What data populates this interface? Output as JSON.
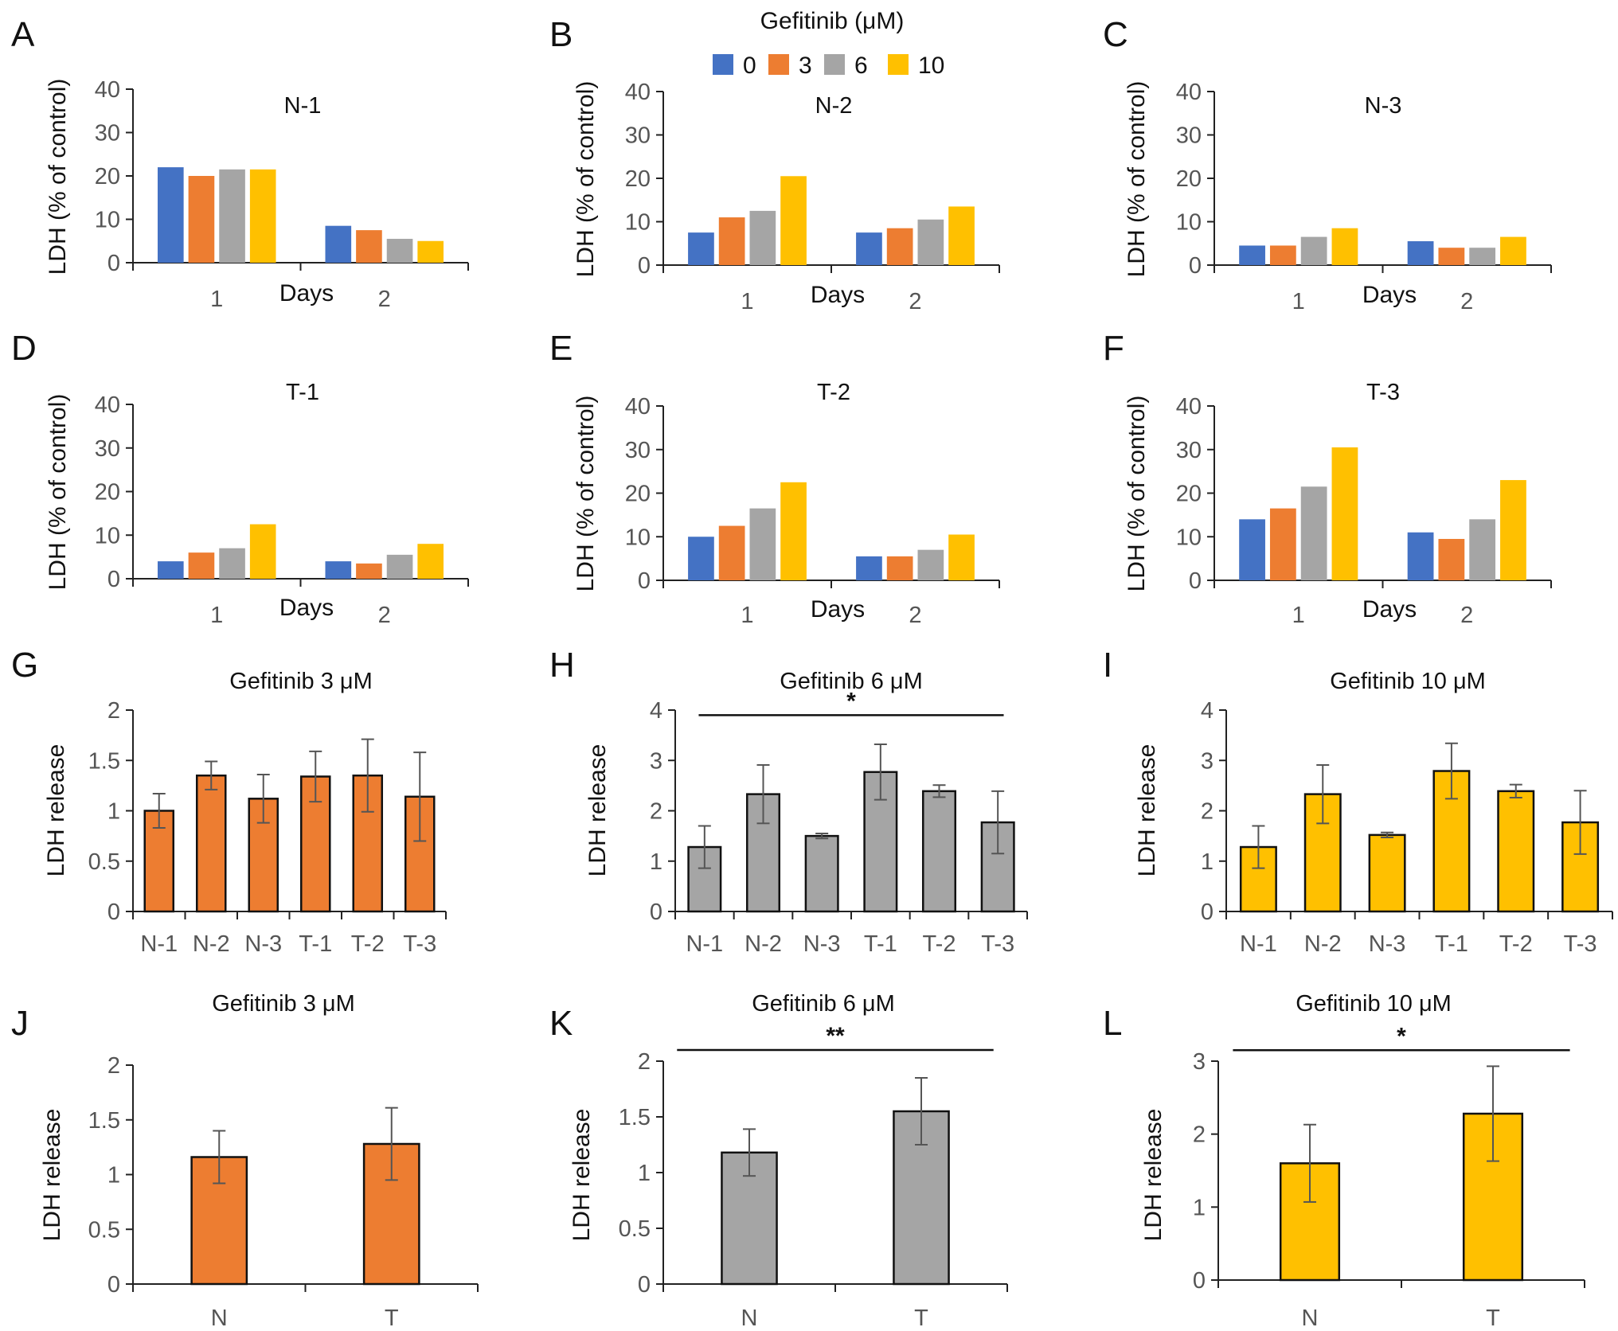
{
  "legend": {
    "title": "Gefitinib (μM)",
    "items": [
      {
        "label": "0",
        "color": "#4472C4"
      },
      {
        "label": "3",
        "color": "#ED7D31"
      },
      {
        "label": "6",
        "color": "#A5A5A5"
      },
      {
        "label": "10",
        "color": "#FFC000"
      }
    ]
  },
  "chart_data": [
    {
      "panel": "A",
      "type": "bar",
      "title": "N-1",
      "xlabel": "Days",
      "ylabel": "LDH (% of control)",
      "ylim": [
        0,
        40
      ],
      "yticks": [
        0,
        10,
        20,
        30,
        40
      ],
      "categories": [
        "1",
        "2"
      ],
      "series": [
        {
          "name": "0",
          "values": [
            22,
            8.5
          ]
        },
        {
          "name": "3",
          "values": [
            20,
            7.5
          ]
        },
        {
          "name": "6",
          "values": [
            21.5,
            5.5
          ]
        },
        {
          "name": "10",
          "values": [
            21.5,
            5
          ]
        }
      ]
    },
    {
      "panel": "B",
      "type": "bar",
      "title": "N-2",
      "xlabel": "Days",
      "ylabel": "LDH (% of control)",
      "ylim": [
        0,
        40
      ],
      "yticks": [
        0,
        10,
        20,
        30,
        40
      ],
      "categories": [
        "1",
        "2"
      ],
      "series": [
        {
          "name": "0",
          "values": [
            7.5,
            7.5
          ]
        },
        {
          "name": "3",
          "values": [
            11,
            8.5
          ]
        },
        {
          "name": "6",
          "values": [
            12.5,
            10.5
          ]
        },
        {
          "name": "10",
          "values": [
            20.5,
            13.5
          ]
        }
      ]
    },
    {
      "panel": "C",
      "type": "bar",
      "title": "N-3",
      "xlabel": "Days",
      "ylabel": "LDH (% of control)",
      "ylim": [
        0,
        40
      ],
      "yticks": [
        0,
        10,
        20,
        30,
        40
      ],
      "categories": [
        "1",
        "2"
      ],
      "series": [
        {
          "name": "0",
          "values": [
            4.5,
            5.5
          ]
        },
        {
          "name": "3",
          "values": [
            4.5,
            4
          ]
        },
        {
          "name": "6",
          "values": [
            6.5,
            4
          ]
        },
        {
          "name": "10",
          "values": [
            8.5,
            6.5
          ]
        }
      ]
    },
    {
      "panel": "D",
      "type": "bar",
      "title": "T-1",
      "xlabel": "Days",
      "ylabel": "LDH (% of control)",
      "ylim": [
        0,
        40
      ],
      "yticks": [
        0,
        10,
        20,
        30,
        40
      ],
      "categories": [
        "1",
        "2"
      ],
      "series": [
        {
          "name": "0",
          "values": [
            4,
            4
          ]
        },
        {
          "name": "3",
          "values": [
            6,
            3.5
          ]
        },
        {
          "name": "6",
          "values": [
            7,
            5.5
          ]
        },
        {
          "name": "10",
          "values": [
            12.5,
            8
          ]
        }
      ]
    },
    {
      "panel": "E",
      "type": "bar",
      "title": "T-2",
      "xlabel": "Days",
      "ylabel": "LDH (% of control)",
      "ylim": [
        0,
        40
      ],
      "yticks": [
        0,
        10,
        20,
        30,
        40
      ],
      "categories": [
        "1",
        "2"
      ],
      "series": [
        {
          "name": "0",
          "values": [
            10,
            5.5
          ]
        },
        {
          "name": "3",
          "values": [
            12.5,
            5.5
          ]
        },
        {
          "name": "6",
          "values": [
            16.5,
            7
          ]
        },
        {
          "name": "10",
          "values": [
            22.5,
            10.5
          ]
        }
      ]
    },
    {
      "panel": "F",
      "type": "bar",
      "title": "T-3",
      "xlabel": "Days",
      "ylabel": "LDH (% of control)",
      "ylim": [
        0,
        40
      ],
      "yticks": [
        0,
        10,
        20,
        30,
        40
      ],
      "categories": [
        "1",
        "2"
      ],
      "series": [
        {
          "name": "0",
          "values": [
            14,
            11
          ]
        },
        {
          "name": "3",
          "values": [
            16.5,
            9.5
          ]
        },
        {
          "name": "6",
          "values": [
            21.5,
            14
          ]
        },
        {
          "name": "10",
          "values": [
            30.5,
            23
          ]
        }
      ]
    },
    {
      "panel": "G",
      "type": "bar",
      "title": "Gefitinib 3 μM",
      "ylabel": "LDH release",
      "ylim": [
        0,
        2
      ],
      "yticks": [
        "0",
        "0.5",
        "1",
        "1.5",
        "2"
      ],
      "categories": [
        "N-1",
        "N-2",
        "N-3",
        "T-1",
        "T-2",
        "T-3"
      ],
      "color": "#ED7D31",
      "values": [
        1.0,
        1.35,
        1.12,
        1.34,
        1.35,
        1.14
      ],
      "errors": [
        0.17,
        0.14,
        0.24,
        0.25,
        0.36,
        0.44
      ]
    },
    {
      "panel": "H",
      "type": "bar",
      "title": "Gefitinib 6 μM",
      "ylabel": "LDH release",
      "ylim": [
        0,
        4
      ],
      "yticks": [
        "0",
        "1",
        "2",
        "3",
        "4"
      ],
      "categories": [
        "N-1",
        "N-2",
        "N-3",
        "T-1",
        "T-2",
        "T-3"
      ],
      "color": "#A5A5A5",
      "values": [
        1.28,
        2.33,
        1.5,
        2.77,
        2.39,
        1.77
      ],
      "errors": [
        0.42,
        0.58,
        0.05,
        0.55,
        0.12,
        0.62
      ],
      "significance": {
        "label": "*",
        "from": 0,
        "to": 5,
        "level": 3.9
      }
    },
    {
      "panel": "I",
      "type": "bar",
      "title": "Gefitinib 10 μM",
      "ylabel": "LDH release",
      "ylim": [
        0,
        4
      ],
      "yticks": [
        "0",
        "1",
        "2",
        "3",
        "4"
      ],
      "categories": [
        "N-1",
        "N-2",
        "N-3",
        "T-1",
        "T-2",
        "T-3"
      ],
      "color": "#FFC000",
      "values": [
        1.28,
        2.33,
        1.52,
        2.79,
        2.39,
        1.77
      ],
      "errors": [
        0.42,
        0.58,
        0.05,
        0.55,
        0.13,
        0.63
      ]
    },
    {
      "panel": "J",
      "type": "bar",
      "title": "Gefitinib 3 μM",
      "ylabel": "LDH release",
      "ylim": [
        0,
        2
      ],
      "yticks": [
        "0",
        "0.5",
        "1",
        "1.5",
        "2"
      ],
      "categories": [
        "N",
        "T"
      ],
      "color": "#ED7D31",
      "values": [
        1.16,
        1.28
      ],
      "errors": [
        0.24,
        0.33
      ]
    },
    {
      "panel": "K",
      "type": "bar",
      "title": "Gefitinib 6 μM",
      "ylabel": "LDH release",
      "ylim": [
        0,
        2
      ],
      "yticks": [
        "0",
        "0.5",
        "1",
        "1.5",
        "2"
      ],
      "categories": [
        "N",
        "T"
      ],
      "color": "#A5A5A5",
      "values": [
        1.18,
        1.55
      ],
      "errors": [
        0.21,
        0.3
      ],
      "significance": {
        "label": "**",
        "from": 0,
        "to": 1,
        "level": 2.1
      }
    },
    {
      "panel": "L",
      "type": "bar",
      "title": "Gefitinib 10 μM",
      "ylabel": "LDH release",
      "ylim": [
        0,
        3
      ],
      "yticks": [
        "0",
        "1",
        "2",
        "3"
      ],
      "categories": [
        "N",
        "T"
      ],
      "color": "#FFC000",
      "values": [
        1.6,
        2.28
      ],
      "errors": [
        0.53,
        0.65
      ],
      "significance": {
        "label": "*",
        "from": 0,
        "to": 1,
        "level": 3.15
      }
    }
  ]
}
